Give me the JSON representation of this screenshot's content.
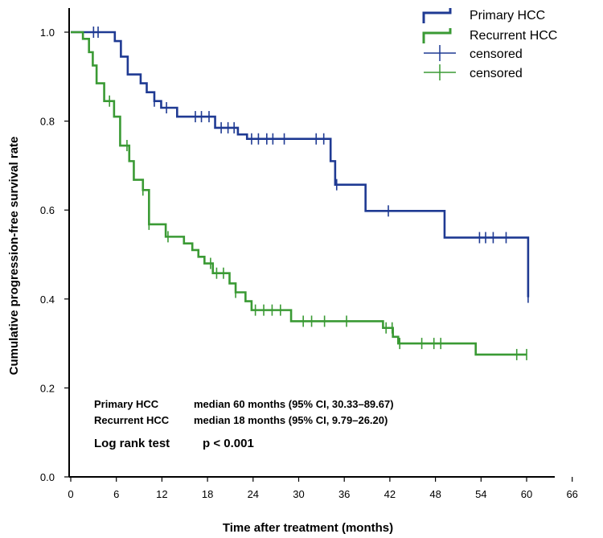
{
  "chart_data": {
    "type": "line",
    "subtype": "kaplan-meier",
    "xlabel": "Time after treatment (months)",
    "ylabel": "Cumulative progression-free survival rate",
    "xlim": [
      0,
      70
    ],
    "ylim": [
      0,
      1.05
    ],
    "xticks": [
      0,
      6,
      12,
      18,
      24,
      30,
      36,
      42,
      48,
      54,
      60,
      66
    ],
    "yticks": [
      0.0,
      0.2,
      0.4,
      0.6,
      0.8,
      1.0
    ],
    "ytick_labels": [
      "0.0",
      "0.2",
      "0.4",
      "0.6",
      "0.8",
      "1.0"
    ],
    "legend_position": "top-right",
    "series": [
      {
        "name": "Primary HCC",
        "color": "#1f3a93",
        "steps": [
          [
            0,
            1.0
          ],
          [
            5.8,
            0.98
          ],
          [
            6.6,
            0.945
          ],
          [
            7.5,
            0.905
          ],
          [
            9.2,
            0.885
          ],
          [
            10.0,
            0.865
          ],
          [
            11.0,
            0.845
          ],
          [
            11.9,
            0.83
          ],
          [
            14.0,
            0.81
          ],
          [
            19.0,
            0.785
          ],
          [
            22.0,
            0.77
          ],
          [
            23.2,
            0.76
          ],
          [
            34.2,
            0.71
          ],
          [
            34.8,
            0.657
          ],
          [
            38.8,
            0.598
          ],
          [
            49.2,
            0.538
          ],
          [
            60.2,
            0.404
          ]
        ],
        "censored": [
          3.0,
          3.6,
          11.0,
          12.6,
          16.4,
          17.2,
          18.2,
          19.8,
          20.7,
          21.5,
          23.8,
          24.7,
          25.8,
          26.6,
          28.1,
          32.3,
          33.3,
          35.0,
          41.8,
          53.8,
          54.6,
          55.6,
          57.3,
          60.2
        ]
      },
      {
        "name": "Recurrent HCC",
        "color": "#3a9a34",
        "steps": [
          [
            0,
            1.0
          ],
          [
            1.6,
            0.985
          ],
          [
            2.4,
            0.955
          ],
          [
            2.9,
            0.925
          ],
          [
            3.4,
            0.885
          ],
          [
            4.4,
            0.845
          ],
          [
            5.7,
            0.81
          ],
          [
            6.5,
            0.745
          ],
          [
            7.7,
            0.71
          ],
          [
            8.3,
            0.668
          ],
          [
            9.5,
            0.645
          ],
          [
            10.3,
            0.568
          ],
          [
            12.5,
            0.54
          ],
          [
            14.9,
            0.525
          ],
          [
            16.0,
            0.51
          ],
          [
            16.8,
            0.495
          ],
          [
            17.6,
            0.48
          ],
          [
            18.7,
            0.458
          ],
          [
            20.9,
            0.435
          ],
          [
            21.7,
            0.415
          ],
          [
            23.0,
            0.395
          ],
          [
            23.8,
            0.375
          ],
          [
            29.0,
            0.35
          ],
          [
            41.1,
            0.335
          ],
          [
            42.4,
            0.315
          ],
          [
            43.1,
            0.3
          ],
          [
            53.3,
            0.275
          ]
        ],
        "censored": [
          5.1,
          7.4,
          9.5,
          10.3,
          12.8,
          18.4,
          19.2,
          20.1,
          21.7,
          24.3,
          25.4,
          26.5,
          27.6,
          30.6,
          31.7,
          33.4,
          36.3,
          41.5,
          42.3,
          43.3,
          46.2,
          47.8,
          48.7,
          58.7,
          60.0
        ]
      }
    ],
    "annotations": {
      "primary_name": "Primary HCC",
      "primary_stat": "median 60 months (95% CI, 30.33–89.67)",
      "recurrent_name": "Recurrent HCC",
      "recurrent_stat": "median 18 months (95% CI, 9.79–26.20)",
      "test_name": "Log rank test",
      "test_value": "p < 0.001"
    },
    "legend": [
      {
        "label": "Primary HCC",
        "kind": "line",
        "series": 0
      },
      {
        "label": "Recurrent HCC",
        "kind": "line",
        "series": 1
      },
      {
        "label": "censored",
        "kind": "censor",
        "series": 0
      },
      {
        "label": "censored",
        "kind": "censor",
        "series": 1
      }
    ]
  }
}
